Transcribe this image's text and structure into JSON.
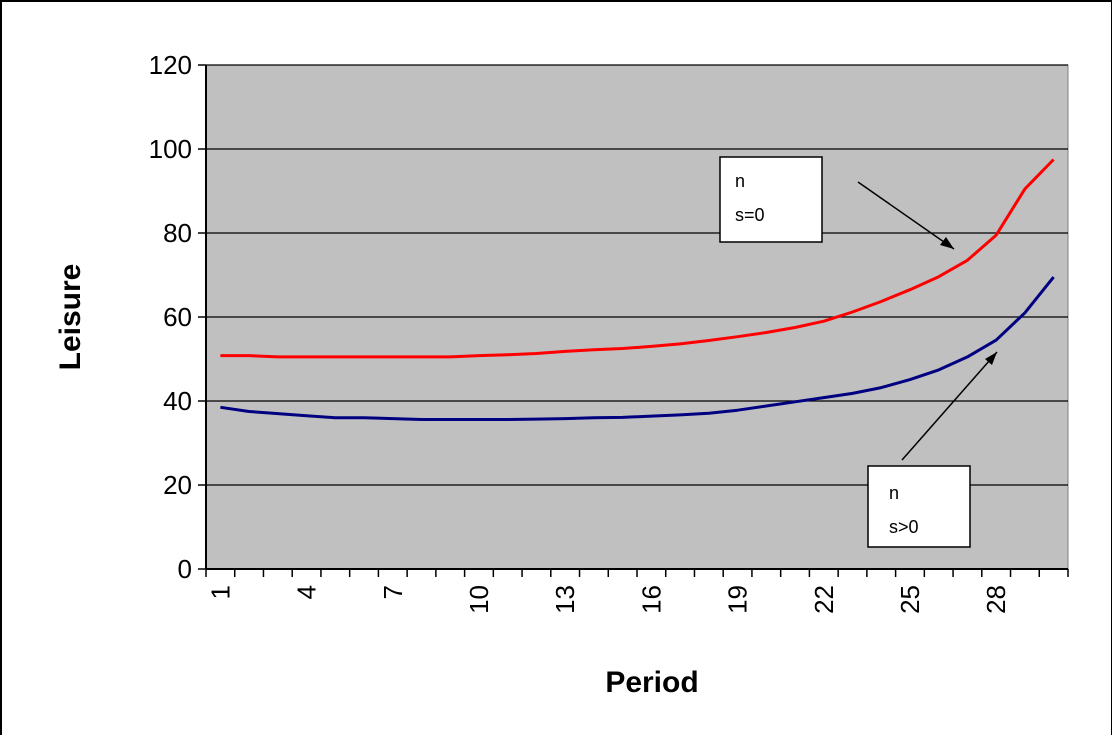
{
  "chart_data": {
    "type": "line",
    "title": "",
    "xlabel": "Period",
    "ylabel": "Leisure",
    "ylim": [
      0,
      120
    ],
    "yticks": [
      0,
      20,
      40,
      60,
      80,
      100,
      120
    ],
    "x_tick_labels": [
      "1",
      "4",
      "7",
      "10",
      "13",
      "16",
      "19",
      "22",
      "25",
      "28"
    ],
    "x": [
      1,
      2,
      3,
      4,
      5,
      6,
      7,
      8,
      9,
      10,
      11,
      12,
      13,
      14,
      15,
      16,
      17,
      18,
      19,
      20,
      21,
      22,
      23,
      24,
      25,
      26,
      27,
      28,
      29,
      30
    ],
    "grid": true,
    "legend": "none",
    "series": [
      {
        "key": "red",
        "color": "#ff0000",
        "values": [
          50.8,
          50.8,
          50.5,
          50.5,
          50.5,
          50.5,
          50.5,
          50.5,
          50.5,
          50.8,
          51.0,
          51.3,
          51.8,
          52.2,
          52.5,
          53.0,
          53.6,
          54.4,
          55.3,
          56.3,
          57.5,
          59.0,
          61.2,
          63.7,
          66.5,
          69.6,
          73.5,
          79.5,
          90.5,
          97.5
        ]
      },
      {
        "key": "blue",
        "color": "#000080",
        "values": [
          38.5,
          37.5,
          37.0,
          36.5,
          36.0,
          36.0,
          35.8,
          35.6,
          35.6,
          35.6,
          35.6,
          35.7,
          35.8,
          36.0,
          36.1,
          36.4,
          36.7,
          37.1,
          37.8,
          38.8,
          39.8,
          40.8,
          41.8,
          43.2,
          45.1,
          47.4,
          50.5,
          54.5,
          61.0,
          69.5
        ]
      }
    ],
    "annotations": [
      {
        "key": "red-note",
        "lines": [
          "n",
          "s=0"
        ]
      },
      {
        "key": "blue-note",
        "lines": [
          "n",
          "s>0"
        ]
      }
    ],
    "colors": {
      "plot_background": "#c0c0c0",
      "gridline": "#000000"
    }
  }
}
